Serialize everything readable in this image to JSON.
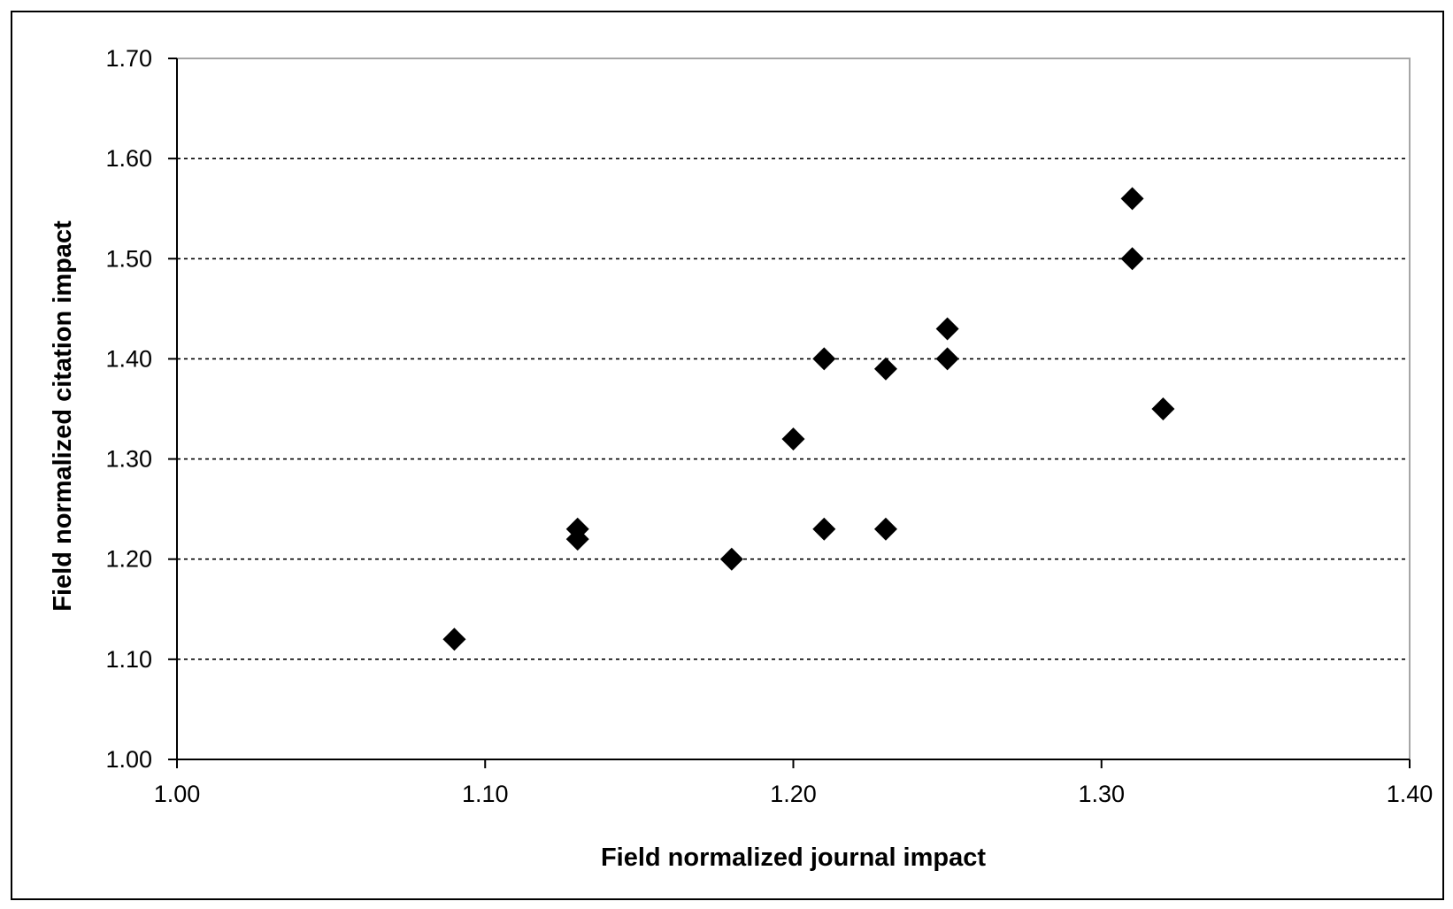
{
  "chart_data": {
    "type": "scatter",
    "title": "",
    "xlabel": "Field normalized journal impact",
    "ylabel": "Field normalized citation impact",
    "xlim": [
      1.0,
      1.4
    ],
    "ylim": [
      1.0,
      1.7
    ],
    "x_ticks": [
      "1.00",
      "1.10",
      "1.20",
      "1.30",
      "1.40"
    ],
    "y_ticks": [
      "1.00",
      "1.10",
      "1.20",
      "1.30",
      "1.40",
      "1.50",
      "1.60",
      "1.70"
    ],
    "x_tick_values": [
      1.0,
      1.1,
      1.2,
      1.3,
      1.4
    ],
    "y_tick_values": [
      1.0,
      1.1,
      1.2,
      1.3,
      1.4,
      1.5,
      1.6,
      1.7
    ],
    "grid": "horizontal dashed",
    "legend": "none",
    "marker": "diamond",
    "marker_color": "#000000",
    "series": [
      {
        "points": [
          {
            "x": 1.09,
            "y": 1.12
          },
          {
            "x": 1.13,
            "y": 1.23
          },
          {
            "x": 1.13,
            "y": 1.22
          },
          {
            "x": 1.18,
            "y": 1.2
          },
          {
            "x": 1.2,
            "y": 1.32
          },
          {
            "x": 1.21,
            "y": 1.4
          },
          {
            "x": 1.21,
            "y": 1.23
          },
          {
            "x": 1.23,
            "y": 1.39
          },
          {
            "x": 1.23,
            "y": 1.23
          },
          {
            "x": 1.25,
            "y": 1.43
          },
          {
            "x": 1.25,
            "y": 1.4
          },
          {
            "x": 1.31,
            "y": 1.56
          },
          {
            "x": 1.31,
            "y": 1.5
          },
          {
            "x": 1.32,
            "y": 1.35
          }
        ]
      }
    ]
  }
}
